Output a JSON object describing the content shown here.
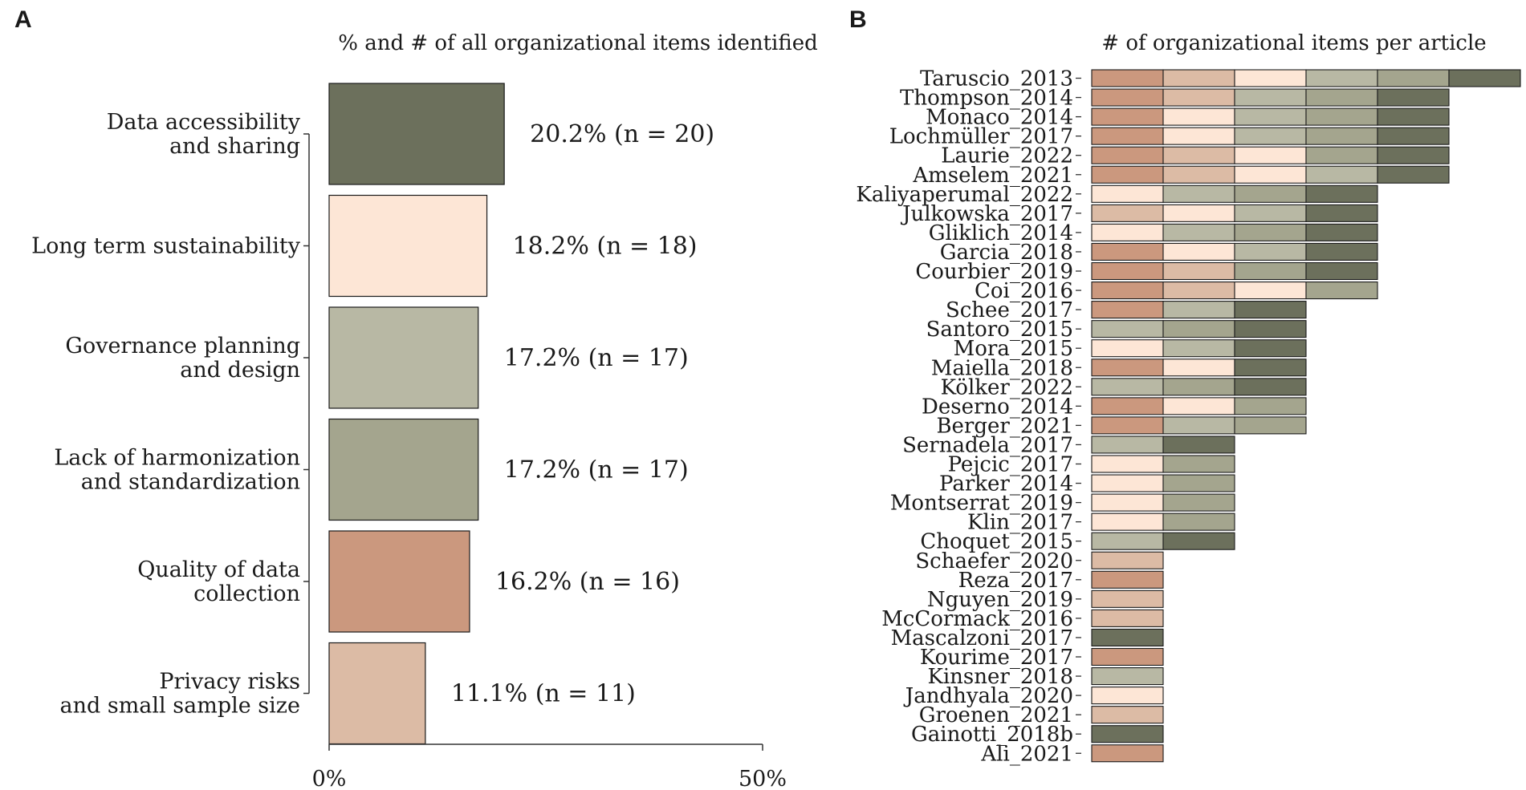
{
  "colors": {
    "Data accessibility and sharing": "#6c705c",
    "Long term sustainability": "#fde6d6",
    "Governance planning and design": "#b8b8a4",
    "Lack of harmonization and standardization": "#a4a58e",
    "Quality of data collection": "#cb987e",
    "Privacy risks and small sample size": "#dcbba5"
  },
  "chart_data": [
    {
      "panel": "A",
      "type": "bar",
      "orientation": "horizontal",
      "title": "% and # of all organizational items identified",
      "categories": [
        "Data accessibility and sharing",
        "Long term sustainability",
        "Governance planning and design",
        "Lack of harmonization and standardization",
        "Quality of data collection",
        "Privacy risks and small sample size"
      ],
      "category_label_lines": [
        [
          "Data accessibility",
          "and sharing"
        ],
        [
          "Long term sustainability"
        ],
        [
          "Governance planning",
          "and design"
        ],
        [
          "Lack of harmonization",
          "and standardization"
        ],
        [
          "Quality of data",
          "collection"
        ],
        [
          "Privacy risks",
          "and small sample size"
        ]
      ],
      "values": [
        20.2,
        18.2,
        17.2,
        17.2,
        16.2,
        11.1
      ],
      "counts": [
        20,
        18,
        17,
        17,
        16,
        11
      ],
      "data_labels": [
        "20.2% (n = 20)",
        "18.2% (n = 18)",
        "17.2% (n = 17)",
        "17.2% (n = 17)",
        "16.2% (n = 16)",
        "11.1% (n = 11)"
      ],
      "xlim": [
        0,
        50
      ],
      "xticks": [
        "0%",
        "50%"
      ],
      "xlabel": "",
      "ylabel": ""
    },
    {
      "panel": "B",
      "type": "bar",
      "orientation": "horizontal",
      "stacked": true,
      "title": "# of organizational items per article",
      "xlabel": "",
      "ylabel": "",
      "segment_legend": {
        "D": "Data accessibility and sharing",
        "L": "Long term sustainability",
        "G": "Governance planning and design",
        "H": "Lack of harmonization and standardization",
        "Q": "Quality of data collection",
        "P": "Privacy risks and small sample size"
      },
      "articles": [
        {
          "name": "Taruscio_2013",
          "segments": [
            "Q",
            "P",
            "L",
            "G",
            "H",
            "D"
          ]
        },
        {
          "name": "Thompson_2014",
          "segments": [
            "Q",
            "P",
            "G",
            "H",
            "D"
          ]
        },
        {
          "name": "Monaco_2014",
          "segments": [
            "Q",
            "L",
            "G",
            "H",
            "D"
          ]
        },
        {
          "name": "Lochmüller_2017",
          "segments": [
            "Q",
            "L",
            "G",
            "H",
            "D"
          ]
        },
        {
          "name": "Laurie_2022",
          "segments": [
            "Q",
            "P",
            "L",
            "H",
            "D"
          ]
        },
        {
          "name": "Amselem_2021",
          "segments": [
            "Q",
            "P",
            "L",
            "G",
            "D"
          ]
        },
        {
          "name": "Kaliyaperumal_2022",
          "segments": [
            "L",
            "G",
            "H",
            "D"
          ]
        },
        {
          "name": "Julkowska_2017",
          "segments": [
            "P",
            "L",
            "G",
            "D"
          ]
        },
        {
          "name": "Gliklich_2014",
          "segments": [
            "L",
            "G",
            "H",
            "D"
          ]
        },
        {
          "name": "Garcia_2018",
          "segments": [
            "Q",
            "L",
            "G",
            "D"
          ]
        },
        {
          "name": "Courbier_2019",
          "segments": [
            "Q",
            "P",
            "H",
            "D"
          ]
        },
        {
          "name": "Coi_2016",
          "segments": [
            "Q",
            "P",
            "L",
            "H"
          ]
        },
        {
          "name": "Schee_2017",
          "segments": [
            "Q",
            "G",
            "D"
          ]
        },
        {
          "name": "Santoro_2015",
          "segments": [
            "G",
            "H",
            "D"
          ]
        },
        {
          "name": "Mora_2015",
          "segments": [
            "L",
            "G",
            "D"
          ]
        },
        {
          "name": "Maiella_2018",
          "segments": [
            "Q",
            "L",
            "D"
          ]
        },
        {
          "name": "Kölker_2022",
          "segments": [
            "G",
            "H",
            "D"
          ]
        },
        {
          "name": "Deserno_2014",
          "segments": [
            "Q",
            "L",
            "H"
          ]
        },
        {
          "name": "Berger_2021",
          "segments": [
            "Q",
            "G",
            "H"
          ]
        },
        {
          "name": "Sernadela_2017",
          "segments": [
            "G",
            "D"
          ]
        },
        {
          "name": "Pejcic_2017",
          "segments": [
            "L",
            "H"
          ]
        },
        {
          "name": "Parker_2014",
          "segments": [
            "L",
            "H"
          ]
        },
        {
          "name": "Montserrat_2019",
          "segments": [
            "L",
            "H"
          ]
        },
        {
          "name": "Klin_2017",
          "segments": [
            "L",
            "H"
          ]
        },
        {
          "name": "Choquet_2015",
          "segments": [
            "G",
            "D"
          ]
        },
        {
          "name": "Schaefer_2020",
          "segments": [
            "P"
          ]
        },
        {
          "name": "Reza_2017",
          "segments": [
            "Q"
          ]
        },
        {
          "name": "Nguyen_2019",
          "segments": [
            "P"
          ]
        },
        {
          "name": "McCormack_2016",
          "segments": [
            "P"
          ]
        },
        {
          "name": "Mascalzoni_2017",
          "segments": [
            "D"
          ]
        },
        {
          "name": "Kourime_2017",
          "segments": [
            "Q"
          ]
        },
        {
          "name": "Kinsner_2018",
          "segments": [
            "G"
          ]
        },
        {
          "name": "Jandhyala_2020",
          "segments": [
            "L"
          ]
        },
        {
          "name": "Groenen_2021",
          "segments": [
            "P"
          ]
        },
        {
          "name": "Gainotti_2018b",
          "segments": [
            "D"
          ]
        },
        {
          "name": "Ali_2021",
          "segments": [
            "Q"
          ]
        }
      ]
    }
  ]
}
